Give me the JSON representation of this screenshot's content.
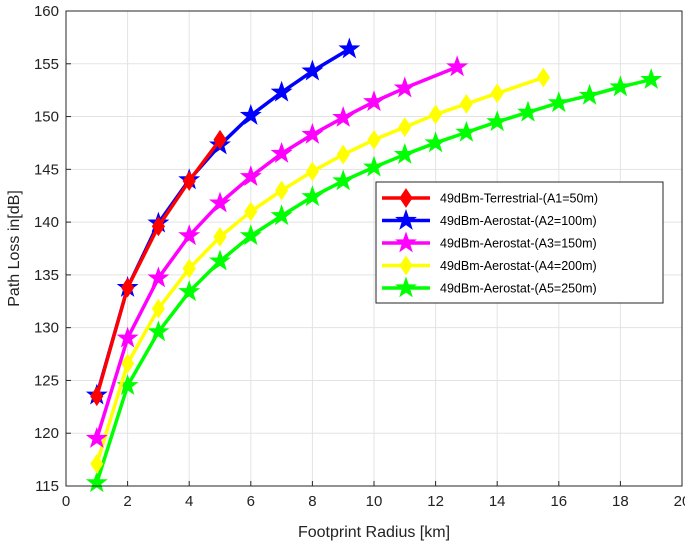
{
  "chart_data": {
    "type": "line",
    "title": "",
    "xlabel": "Footprint Radius [km]",
    "ylabel": "Path Loss in[dB]",
    "xlim": [
      0,
      20
    ],
    "ylim": [
      115,
      160
    ],
    "xticks": [
      "0",
      "2",
      "4",
      "6",
      "8",
      "10",
      "12",
      "14",
      "16",
      "18",
      "20"
    ],
    "yticks": [
      "115",
      "120",
      "125",
      "130",
      "135",
      "140",
      "145",
      "150",
      "155",
      "160"
    ],
    "grid": true,
    "legend_position": "center-right",
    "series": [
      {
        "name": "49dBm-Terrestrial-(A1=50m)",
        "color": "#ff0000",
        "marker": "diamond",
        "x": [
          1,
          2,
          3,
          4,
          5
        ],
        "y": [
          123.5,
          133.8,
          139.6,
          143.9,
          147.8
        ]
      },
      {
        "name": "49dBm-Aerostat-(A2=100m)",
        "color": "#0000ff",
        "marker": "star",
        "x": [
          1,
          2,
          3,
          4,
          5,
          6,
          7,
          8,
          9.2
        ],
        "y": [
          123.6,
          133.8,
          139.9,
          144.0,
          147.3,
          150.1,
          152.3,
          154.3,
          156.4
        ]
      },
      {
        "name": "49dBm-Aerostat-(A3=150m)",
        "color": "#ff00ff",
        "marker": "star",
        "x": [
          1,
          2,
          3,
          4,
          5,
          6,
          7,
          8,
          9,
          10,
          11,
          12.7
        ],
        "y": [
          119.5,
          129.0,
          134.7,
          138.7,
          141.8,
          144.3,
          146.5,
          148.3,
          149.9,
          151.4,
          152.7,
          154.7
        ]
      },
      {
        "name": "49dBm-Aerostat-(A4=200m)",
        "color": "#ffff00",
        "marker": "diamond",
        "x": [
          1,
          2,
          3,
          4,
          5,
          6,
          7,
          8,
          9,
          10,
          11,
          12,
          13,
          14,
          15.5
        ],
        "y": [
          117.1,
          126.6,
          131.8,
          135.6,
          138.6,
          141.0,
          143.0,
          144.8,
          146.4,
          147.8,
          149.0,
          150.2,
          151.2,
          152.2,
          153.7
        ]
      },
      {
        "name": "49dBm-Aerostat-(A5=250m)",
        "color": "#00ff00",
        "marker": "star",
        "x": [
          1,
          2,
          3,
          4,
          5,
          6,
          7,
          8,
          9,
          10,
          11,
          12,
          13,
          14,
          15,
          16,
          17,
          18,
          19
        ],
        "y": [
          115.3,
          124.5,
          129.6,
          133.4,
          136.3,
          138.7,
          140.6,
          142.4,
          143.9,
          145.2,
          146.4,
          147.5,
          148.5,
          149.5,
          150.4,
          151.3,
          152.0,
          152.8,
          153.5
        ]
      }
    ]
  }
}
